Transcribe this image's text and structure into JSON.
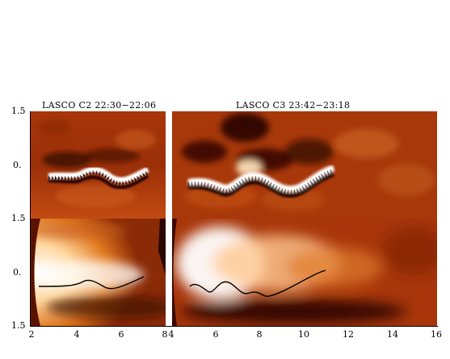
{
  "titles": {
    "c2": "LASCO C2 22:30−22:06",
    "c3": "LASCO C3 23:42−23:18"
  },
  "y_ticks": [
    "1.5",
    "0.",
    "1.5",
    "0.",
    "1.5"
  ],
  "x_ticks": [
    "2",
    "4",
    "6",
    "8",
    "4",
    "6",
    "8",
    "10",
    "12",
    "14",
    "16"
  ],
  "colors": {
    "dark": "#2a0600",
    "mid": "#b33c0a",
    "bright": "#ffffff"
  }
}
